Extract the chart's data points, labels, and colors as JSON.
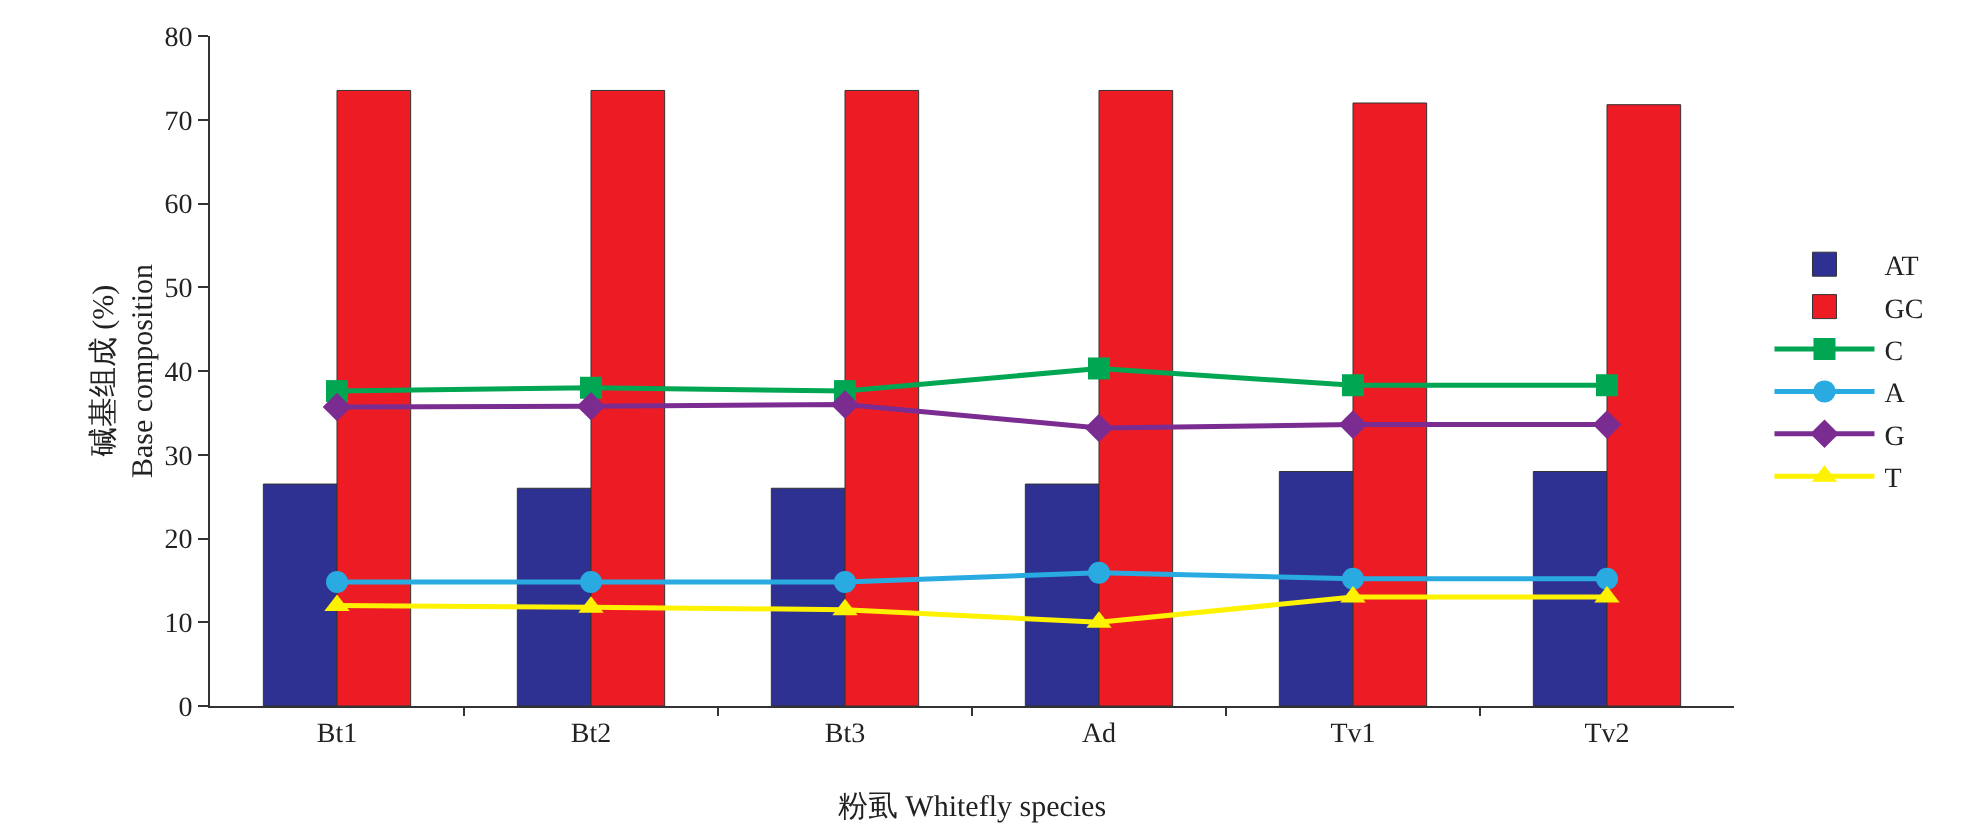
{
  "chart_data": {
    "type": "bar",
    "xlabel": "粉虱 Whitefly species",
    "ylabel": "碱基组成 (%)\nBase composition",
    "categories": [
      "Bt1",
      "Bt2",
      "Bt3",
      "Ad",
      "Tv1",
      "Tv2"
    ],
    "series": [
      {
        "name": "AT",
        "color": "#2e3192",
        "values": [
          26.5,
          26,
          26,
          26.5,
          28,
          28
        ]
      },
      {
        "name": "GC",
        "color": "#ed1c24",
        "values": [
          73.5,
          73.5,
          73.5,
          73.5,
          72,
          71.8
        ]
      },
      {
        "name": "C",
        "type": "line",
        "marker": "square",
        "color": "#00a651",
        "values": [
          37.6,
          38,
          37.6,
          40.3,
          38.3,
          38.3
        ]
      },
      {
        "name": "A",
        "type": "line",
        "marker": "circle",
        "color": "#29abe2",
        "values": [
          14.8,
          14.8,
          14.8,
          15.9,
          15.2,
          15.2
        ]
      },
      {
        "name": "G",
        "type": "line",
        "marker": "diamond",
        "color": "#7b2c91",
        "values": [
          35.7,
          35.8,
          36,
          33.2,
          33.6,
          33.6
        ]
      },
      {
        "name": "T",
        "type": "line",
        "marker": "triangle",
        "color": "#fff200",
        "values": [
          12,
          11.8,
          11.5,
          10,
          13,
          13
        ]
      }
    ],
    "ylim": [
      0,
      80
    ],
    "yticks": [
      0,
      10,
      20,
      30,
      40,
      50,
      60,
      70,
      80
    ],
    "grid": false,
    "legend": "right"
  }
}
